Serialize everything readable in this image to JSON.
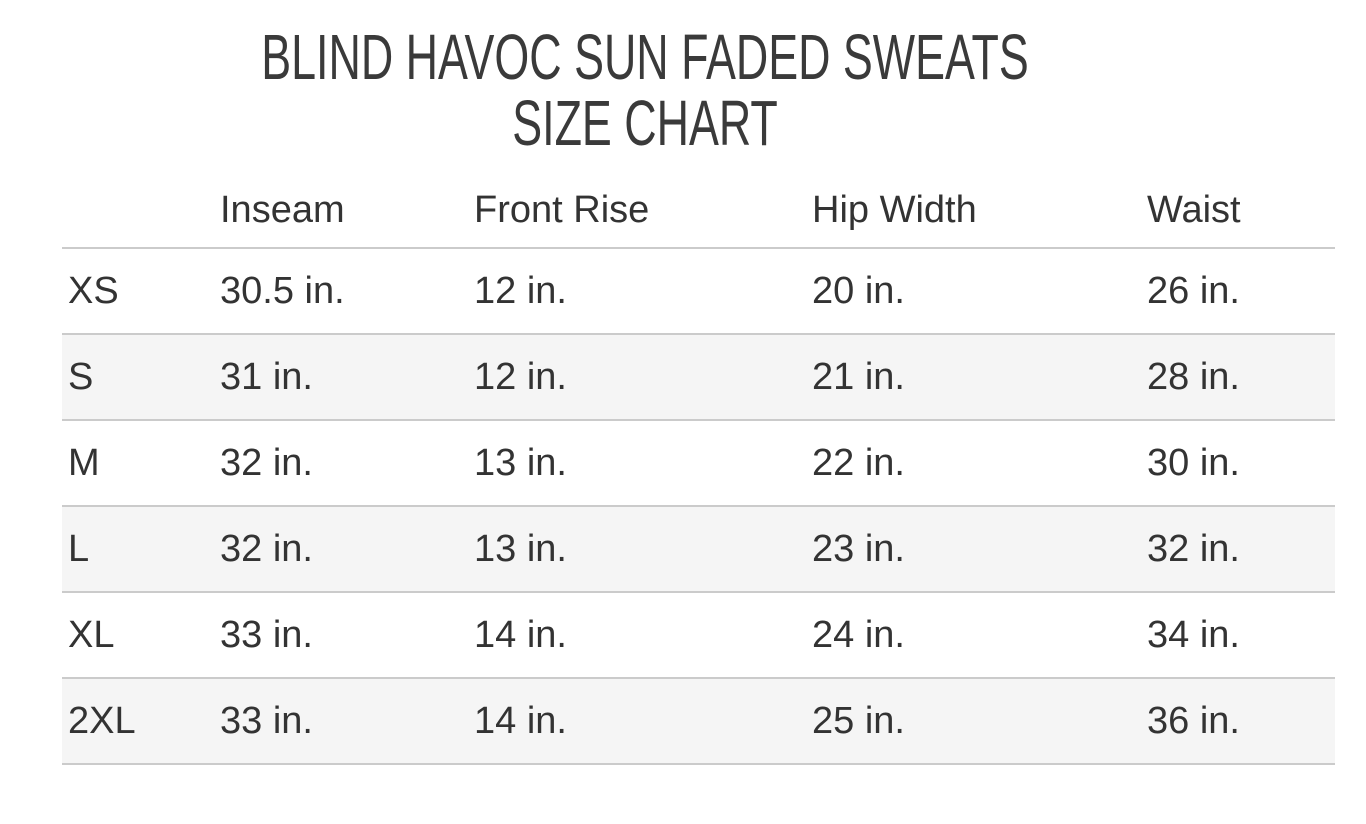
{
  "title": {
    "line1": "BLIND HAVOC SUN FADED SWEATS",
    "line2": "SIZE CHART"
  },
  "colors": {
    "background": "#ffffff",
    "text": "#333333",
    "divider": "#cbcbcb",
    "alt_row_bg": "#f5f5f5"
  },
  "chart_data": {
    "type": "table",
    "title": "BLIND HAVOC SUN FADED SWEATS SIZE CHART",
    "columns": [
      "",
      "Inseam",
      "Front Rise",
      "Hip Width",
      "Waist"
    ],
    "units": "in.",
    "rows": [
      [
        "XS",
        "30.5 in.",
        "12 in.",
        "20 in.",
        "26 in."
      ],
      [
        "S",
        "31 in.",
        "12 in.",
        "21 in.",
        "28 in."
      ],
      [
        "M",
        "32 in.",
        "13 in.",
        "22 in.",
        "30 in."
      ],
      [
        "L",
        "32 in.",
        "13 in.",
        "23 in.",
        "32 in."
      ],
      [
        "XL",
        "33 in.",
        "14 in.",
        "24 in.",
        "34 in."
      ],
      [
        "2XL",
        "33 in.",
        "14 in.",
        "25 in.",
        "36 in."
      ]
    ]
  }
}
